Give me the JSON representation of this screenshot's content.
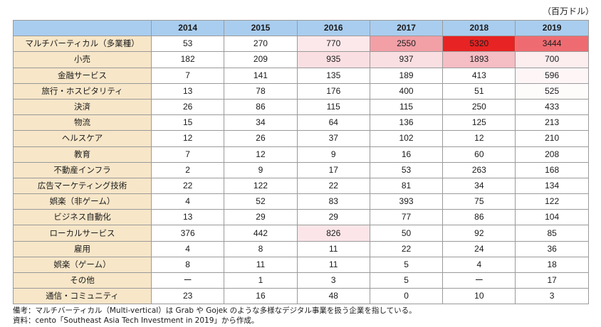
{
  "unit_label": "（百万ドル）",
  "years": [
    "2014",
    "2015",
    "2016",
    "2017",
    "2018",
    "2019"
  ],
  "colors": {
    "header_bg": "#a9cdef",
    "category_bg": "#f7e6c8",
    "heat_scale": [
      "#ffffff",
      "#f4c6cc",
      "#ef9aa2",
      "#ea2323"
    ]
  },
  "rows": [
    {
      "category": "マルチバーティカル（多業種）",
      "values": [
        "53",
        "270",
        "770",
        "2550",
        "5320",
        "3444"
      ]
    },
    {
      "category": "小売",
      "values": [
        "182",
        "209",
        "935",
        "937",
        "1893",
        "700"
      ]
    },
    {
      "category": "金融サービス",
      "values": [
        "7",
        "141",
        "135",
        "189",
        "413",
        "596"
      ]
    },
    {
      "category": "旅行・ホスピタリティ",
      "values": [
        "13",
        "78",
        "176",
        "400",
        "51",
        "525"
      ]
    },
    {
      "category": "決済",
      "values": [
        "26",
        "86",
        "115",
        "115",
        "250",
        "433"
      ]
    },
    {
      "category": "物流",
      "values": [
        "15",
        "34",
        "64",
        "136",
        "125",
        "213"
      ]
    },
    {
      "category": "ヘルスケア",
      "values": [
        "12",
        "26",
        "37",
        "102",
        "12",
        "210"
      ]
    },
    {
      "category": "教育",
      "values": [
        "7",
        "12",
        "9",
        "16",
        "60",
        "208"
      ]
    },
    {
      "category": "不動産インフラ",
      "values": [
        "2",
        "9",
        "17",
        "53",
        "263",
        "168"
      ]
    },
    {
      "category": "広告マーケティング技術",
      "values": [
        "22",
        "122",
        "22",
        "81",
        "34",
        "134"
      ]
    },
    {
      "category": "娯楽（非ゲーム）",
      "values": [
        "4",
        "52",
        "83",
        "393",
        "75",
        "122"
      ]
    },
    {
      "category": "ビジネス自動化",
      "values": [
        "13",
        "29",
        "29",
        "77",
        "86",
        "104"
      ]
    },
    {
      "category": "ローカルサービス",
      "values": [
        "376",
        "442",
        "826",
        "50",
        "92",
        "85"
      ]
    },
    {
      "category": "雇用",
      "values": [
        "4",
        "8",
        "11",
        "22",
        "24",
        "36"
      ]
    },
    {
      "category": "娯楽（ゲーム）",
      "values": [
        "8",
        "11",
        "11",
        "5",
        "4",
        "18"
      ]
    },
    {
      "category": "その他",
      "values": [
        "ー",
        "1",
        "3",
        "5",
        "ー",
        "17"
      ]
    },
    {
      "category": "通信・コミュニティ",
      "values": [
        "23",
        "16",
        "48",
        "0",
        "10",
        "3"
      ]
    }
  ],
  "notes": [
    "備考：マルチバーティカル（Multi-vertical）は Grab や Gojek のような多様なデジタル事業を扱う企業を指している。",
    "資料：cento「Southeast Asia Tech Investment in 2019」から作成。"
  ]
}
